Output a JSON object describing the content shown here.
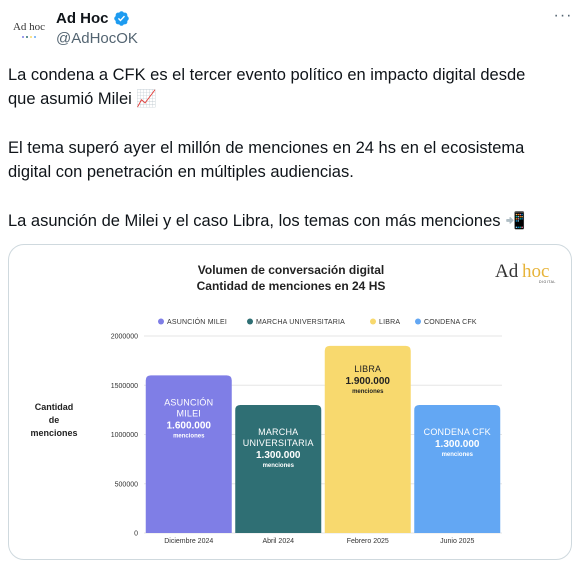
{
  "tweet": {
    "display_name": "Ad Hoc",
    "handle": "@AdHocOK",
    "verified": true,
    "avatar_text": "Ad hoc",
    "more_icon": "ellipsis-icon",
    "lines": [
      "La condena a CFK es el tercer evento político en impacto digital desde",
      "que asumió Milei 📈",
      "El tema superó ayer el millón de menciones en 24 hs en el ecosistema",
      "digital con penetración en múltiples audiencias.",
      "La asunción de Milei y el caso Libra, los temas con más menciones 📲"
    ]
  },
  "chart_data": {
    "type": "bar",
    "title": "Volumen de conversación digital",
    "subtitle": "Cantidad de menciones en 24 HS",
    "ylabel": "Cantidad de menciones",
    "ylim": [
      0,
      2000000
    ],
    "yticks": [
      "0",
      "500000",
      "1000000",
      "1500000",
      "2000000"
    ],
    "grid": true,
    "legend_position": "top",
    "logo": {
      "word1": "Ad",
      "word2": "hoc",
      "sub": "DIGITAL"
    },
    "series": [
      {
        "name": "ASUNCIÓN MILEI",
        "x_label": "Diciembre 2024",
        "value": 1600000,
        "bar_label": "ASUNCIÓN MILEI",
        "value_label": "1.600.000",
        "unit": "menciones",
        "color": "#7f7ee6",
        "text_color": "#ffffff"
      },
      {
        "name": "MARCHA UNIVERSITARIA",
        "x_label": "Abril 2024",
        "value": 1300000,
        "bar_label": "MARCHA UNIVERSITARIA",
        "value_label": "1.300.000",
        "unit": "menciones",
        "color": "#2f6f74",
        "text_color": "#ffffff"
      },
      {
        "name": "LIBRA",
        "x_label": "Febrero 2025",
        "value": 1900000,
        "bar_label": "LIBRA",
        "value_label": "1.900.000",
        "unit": "menciones",
        "color": "#f8d96e",
        "text_color": "#222222"
      },
      {
        "name": "CONDENA CFK",
        "x_label": "Junio 2025",
        "value": 1300000,
        "bar_label": "CONDENA CFK",
        "value_label": "1.300.000",
        "unit": "menciones",
        "color": "#63a7f3",
        "text_color": "#ffffff"
      }
    ]
  }
}
